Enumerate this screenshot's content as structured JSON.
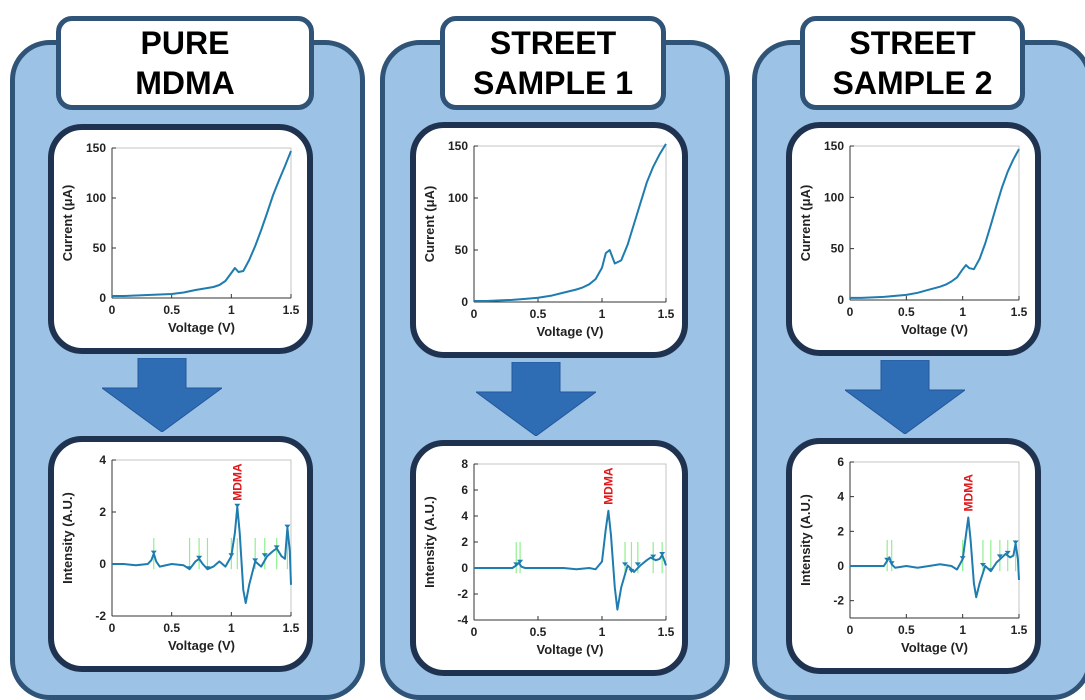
{
  "colors": {
    "column_fill": "#9cc2e6",
    "border": "#2f5477",
    "panel_border": "#1f3350",
    "arrow": "#2e6db3",
    "curve": "#1f7caf",
    "marker_lines": "#8fef8f",
    "label": "#e0191b"
  },
  "samples": [
    {
      "title": "PURE\nMDMA",
      "voltammogram": {
        "type": "line",
        "xlabel": "Voltage (V)",
        "ylabel": "Current (μA)",
        "xlim": [
          0,
          1.5
        ],
        "ylim": [
          0,
          150
        ],
        "x_ticks": [
          "0",
          "0.5",
          "1",
          "1.5"
        ],
        "y_ticks": [
          "0",
          "50",
          "100",
          "150"
        ],
        "x": [
          0,
          0.1,
          0.2,
          0.3,
          0.4,
          0.5,
          0.6,
          0.7,
          0.8,
          0.85,
          0.9,
          0.95,
          1.0,
          1.03,
          1.06,
          1.1,
          1.15,
          1.2,
          1.25,
          1.3,
          1.35,
          1.4,
          1.45,
          1.5
        ],
        "y": [
          2,
          2,
          2.5,
          3,
          3.5,
          4,
          5.5,
          8,
          10,
          11,
          13,
          17,
          25,
          30,
          26,
          27,
          38,
          52,
          68,
          85,
          103,
          118,
          132,
          147
        ]
      },
      "spectrum": {
        "type": "line",
        "xlabel": "Voltage (V)",
        "ylabel": "Intensity (A.U.)",
        "xlim": [
          0,
          1.5
        ],
        "ylim": [
          -2,
          4
        ],
        "x_ticks": [
          "0",
          "0.5",
          "1",
          "1.5"
        ],
        "y_ticks": [
          "-2",
          "0",
          "2",
          "4"
        ],
        "peak_label": "MDMA",
        "peak_x": 1.05,
        "peak_y": 2.2,
        "markers": [
          0.35,
          0.65,
          0.73,
          0.8,
          1.0,
          1.05,
          1.2,
          1.28,
          1.38,
          1.47
        ],
        "x": [
          0,
          0.1,
          0.2,
          0.3,
          0.33,
          0.35,
          0.37,
          0.4,
          0.5,
          0.6,
          0.65,
          0.7,
          0.73,
          0.76,
          0.8,
          0.85,
          0.9,
          0.95,
          1.0,
          1.03,
          1.05,
          1.07,
          1.1,
          1.12,
          1.15,
          1.2,
          1.25,
          1.3,
          1.35,
          1.38,
          1.42,
          1.45,
          1.47,
          1.49,
          1.5
        ],
        "y": [
          0,
          0,
          -0.05,
          0,
          0.15,
          0.4,
          0.1,
          -0.1,
          0,
          -0.05,
          -0.2,
          0.1,
          0.2,
          0,
          -0.2,
          -0.1,
          0.1,
          -0.1,
          0.3,
          1.2,
          2.2,
          1.2,
          -1.0,
          -1.5,
          -0.8,
          0.1,
          -0.1,
          0.3,
          0.5,
          0.6,
          0.3,
          0.2,
          1.4,
          0.5,
          -0.8
        ]
      }
    },
    {
      "title": "STREET\nSAMPLE 1",
      "voltammogram": {
        "type": "line",
        "xlabel": "Voltage (V)",
        "ylabel": "Current (μA)",
        "xlim": [
          0,
          1.5
        ],
        "ylim": [
          0,
          150
        ],
        "x_ticks": [
          "0",
          "0.5",
          "1",
          "1.5"
        ],
        "y_ticks": [
          "0",
          "50",
          "100",
          "150"
        ],
        "x": [
          0,
          0.1,
          0.2,
          0.3,
          0.4,
          0.5,
          0.6,
          0.7,
          0.8,
          0.85,
          0.9,
          0.95,
          1.0,
          1.03,
          1.06,
          1.1,
          1.15,
          1.2,
          1.25,
          1.3,
          1.35,
          1.4,
          1.45,
          1.5
        ],
        "y": [
          1,
          1,
          1.5,
          2,
          3,
          4,
          6,
          9,
          12,
          14,
          17,
          22,
          33,
          47,
          50,
          37,
          40,
          55,
          75,
          95,
          115,
          130,
          142,
          152
        ]
      },
      "spectrum": {
        "type": "line",
        "xlabel": "Voltage (V)",
        "ylabel": "Intensity (A.U.)",
        "xlim": [
          0,
          1.5
        ],
        "ylim": [
          -4,
          8
        ],
        "x_ticks": [
          "0",
          "0.5",
          "1",
          "1.5"
        ],
        "y_ticks": [
          "-4",
          "-2",
          "0",
          "2",
          "4",
          "6",
          "8"
        ],
        "peak_label": "MDMA",
        "peak_x": 1.05,
        "peak_y": 4.4,
        "markers": [
          0.33,
          0.36,
          1.18,
          1.23,
          1.28,
          1.4,
          1.47
        ],
        "x": [
          0,
          0.1,
          0.2,
          0.3,
          0.33,
          0.35,
          0.37,
          0.4,
          0.5,
          0.6,
          0.7,
          0.8,
          0.9,
          0.95,
          1.0,
          1.03,
          1.05,
          1.07,
          1.1,
          1.12,
          1.15,
          1.2,
          1.25,
          1.3,
          1.35,
          1.38,
          1.42,
          1.45,
          1.47,
          1.49,
          1.5
        ],
        "y": [
          0,
          0,
          0,
          0,
          0.2,
          0.4,
          0.1,
          0,
          0,
          0,
          0,
          -0.1,
          0,
          -0.1,
          0.5,
          3.0,
          4.4,
          2.5,
          -1.5,
          -3.2,
          -1.5,
          0.2,
          -0.3,
          0.2,
          0.6,
          0.8,
          0.6,
          0.7,
          1.0,
          0.5,
          0.2
        ]
      }
    },
    {
      "title": "STREET\nSAMPLE 2",
      "voltammogram": {
        "type": "line",
        "xlabel": "Voltage (V)",
        "ylabel": "Current (μA)",
        "xlim": [
          0,
          1.5
        ],
        "ylim": [
          0,
          150
        ],
        "x_ticks": [
          "0",
          "0.5",
          "1",
          "1.5"
        ],
        "y_ticks": [
          "0",
          "50",
          "100",
          "150"
        ],
        "x": [
          0,
          0.1,
          0.2,
          0.3,
          0.4,
          0.5,
          0.6,
          0.7,
          0.8,
          0.85,
          0.9,
          0.95,
          1.0,
          1.03,
          1.06,
          1.1,
          1.15,
          1.2,
          1.25,
          1.3,
          1.35,
          1.4,
          1.45,
          1.5
        ],
        "y": [
          2,
          2,
          2.5,
          3,
          4,
          5,
          7,
          10,
          13,
          15,
          18,
          22,
          30,
          34,
          31,
          30,
          40,
          55,
          73,
          92,
          110,
          125,
          137,
          147
        ]
      },
      "spectrum": {
        "type": "line",
        "xlabel": "Voltage (V)",
        "ylabel": "Intensity (A.U.)",
        "xlim": [
          0,
          1.5
        ],
        "ylim": [
          -3,
          6
        ],
        "x_ticks": [
          "0",
          "0.5",
          "1",
          "1.5"
        ],
        "y_ticks": [
          "-2",
          "0",
          "2",
          "4",
          "6"
        ],
        "peak_label": "MDMA",
        "peak_x": 1.05,
        "peak_y": 2.8,
        "markers": [
          0.33,
          0.37,
          1.0,
          1.18,
          1.25,
          1.33,
          1.4,
          1.47
        ],
        "x": [
          0,
          0.1,
          0.2,
          0.3,
          0.33,
          0.35,
          0.37,
          0.4,
          0.5,
          0.6,
          0.7,
          0.8,
          0.9,
          0.95,
          1.0,
          1.03,
          1.05,
          1.07,
          1.1,
          1.12,
          1.15,
          1.2,
          1.25,
          1.3,
          1.35,
          1.38,
          1.42,
          1.45,
          1.47,
          1.49,
          1.5
        ],
        "y": [
          0,
          0,
          0,
          0,
          0.3,
          0.5,
          0.1,
          -0.1,
          0,
          -0.1,
          0,
          0.1,
          0,
          -0.2,
          0.4,
          1.8,
          2.8,
          1.5,
          -1.0,
          -1.8,
          -1.0,
          0,
          -0.3,
          0.2,
          0.5,
          0.7,
          0.5,
          0.6,
          1.3,
          0.4,
          -0.8
        ]
      }
    }
  ]
}
